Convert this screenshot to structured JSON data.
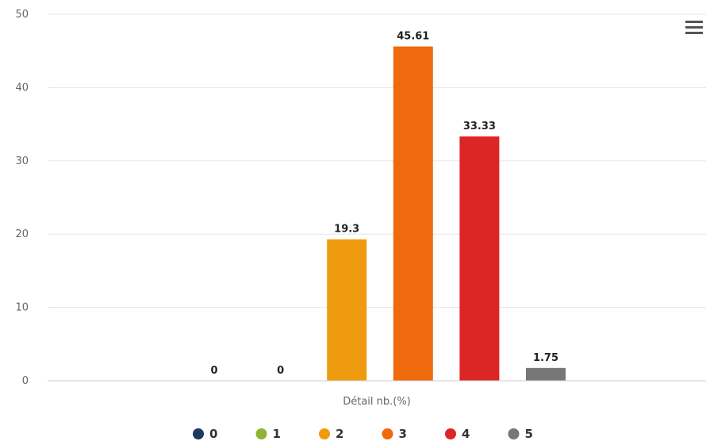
{
  "chart_data": {
    "type": "bar",
    "xlabel": "Détail nb.(%)",
    "ylabel": "",
    "ylim": [
      0,
      50
    ],
    "yticks": [
      0,
      10,
      20,
      30,
      40,
      50
    ],
    "grid": true,
    "legend_position": "bottom",
    "series": [
      {
        "name": "0",
        "value": 0,
        "label": "0",
        "color": "#1f3a5c"
      },
      {
        "name": "1",
        "value": 0,
        "label": "0",
        "color": "#8fb534"
      },
      {
        "name": "2",
        "value": 19.3,
        "label": "19.3",
        "color": "#ef9b0f"
      },
      {
        "name": "3",
        "value": 45.61,
        "label": "45.61",
        "color": "#ee6a0c"
      },
      {
        "name": "4",
        "value": 33.33,
        "label": "33.33",
        "color": "#dc2626"
      },
      {
        "name": "5",
        "value": 1.75,
        "label": "1.75",
        "color": "#777777"
      }
    ]
  },
  "menu": {
    "icon": "hamburger-menu-icon"
  }
}
